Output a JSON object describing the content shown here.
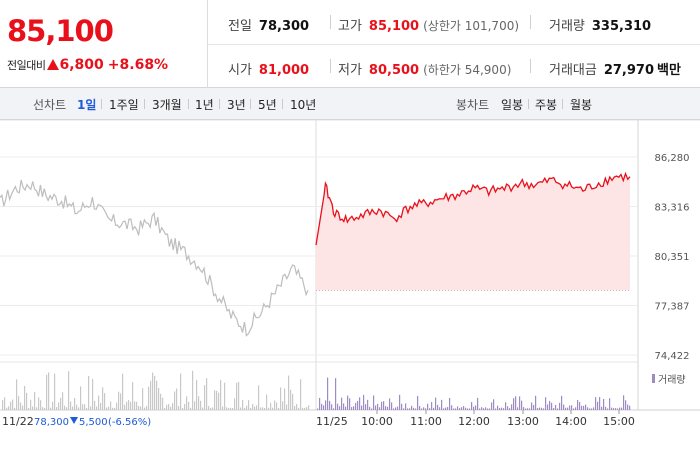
{
  "quote": {
    "price": "85,100",
    "change_label": "전일대비",
    "change_value": "6,800",
    "change_rate": "+8.68%",
    "direction": "up",
    "colors": {
      "up": "#e8111b",
      "down": "#1e5bd8"
    }
  },
  "stats": {
    "prev_close": {
      "label": "전일",
      "value": "78,300"
    },
    "high": {
      "label": "고가",
      "value": "85,100",
      "sub": "(상한가 101,700)"
    },
    "volume": {
      "label": "거래량",
      "value": "335,310"
    },
    "open": {
      "label": "시가",
      "value": "81,000"
    },
    "low": {
      "label": "저가",
      "value": "80,500",
      "sub": "(하한가 54,900)"
    },
    "turnover": {
      "label": "거래대금",
      "value": "27,970",
      "unit": "백만"
    }
  },
  "tabs": {
    "line_label": "선차트",
    "line_tabs": [
      "1일",
      "1주일",
      "3개월",
      "1년",
      "3년",
      "5년",
      "10년"
    ],
    "active_line_tab": "1일",
    "candle_label": "봉차트",
    "candle_tabs": [
      "일봉",
      "주봉",
      "월봉"
    ]
  },
  "chart_data": {
    "type": "line",
    "y_ticks": [
      "86,280",
      "83,316",
      "80,351",
      "77,387",
      "74,422"
    ],
    "ylim": [
      74422,
      86280
    ],
    "prev_close": 78300,
    "prev_day": {
      "date_label": "11/22",
      "close_label": "78,300",
      "change_label": "5,500",
      "rate_label": "(-6.56%)",
      "x": [
        0,
        5,
        10,
        15,
        20,
        25,
        30,
        35,
        40,
        45,
        50,
        55,
        60,
        65,
        70,
        75,
        80,
        85,
        90,
        95,
        100
      ],
      "y": [
        83500,
        84400,
        84700,
        84000,
        83700,
        83000,
        83700,
        82500,
        82300,
        82000,
        82600,
        81200,
        80600,
        79800,
        78200,
        76800,
        76000,
        77000,
        78300,
        79600,
        78300
      ]
    },
    "today": {
      "date_label": "11/25",
      "x_tick_labels": [
        "10:00",
        "11:00",
        "12:00",
        "13:00",
        "14:00",
        "15:00"
      ],
      "x": [
        0,
        3,
        6,
        10,
        15,
        20,
        25,
        30,
        35,
        40,
        45,
        50,
        55,
        60,
        65,
        70,
        75,
        80,
        85,
        90,
        95,
        100
      ],
      "y": [
        81000,
        84500,
        82900,
        82500,
        82800,
        83100,
        82600,
        83300,
        83500,
        83800,
        84000,
        84400,
        84200,
        84400,
        84700,
        84600,
        84900,
        84600,
        84300,
        84700,
        85100,
        85100
      ]
    },
    "volume_legend": "거래량",
    "colors": {
      "prev_line": "#bdbdbd",
      "today_line": "#e8111b",
      "fill": "#fde4e5",
      "volume_prev": "#c8c8c8",
      "volume_today": "#9e8bc4"
    }
  }
}
